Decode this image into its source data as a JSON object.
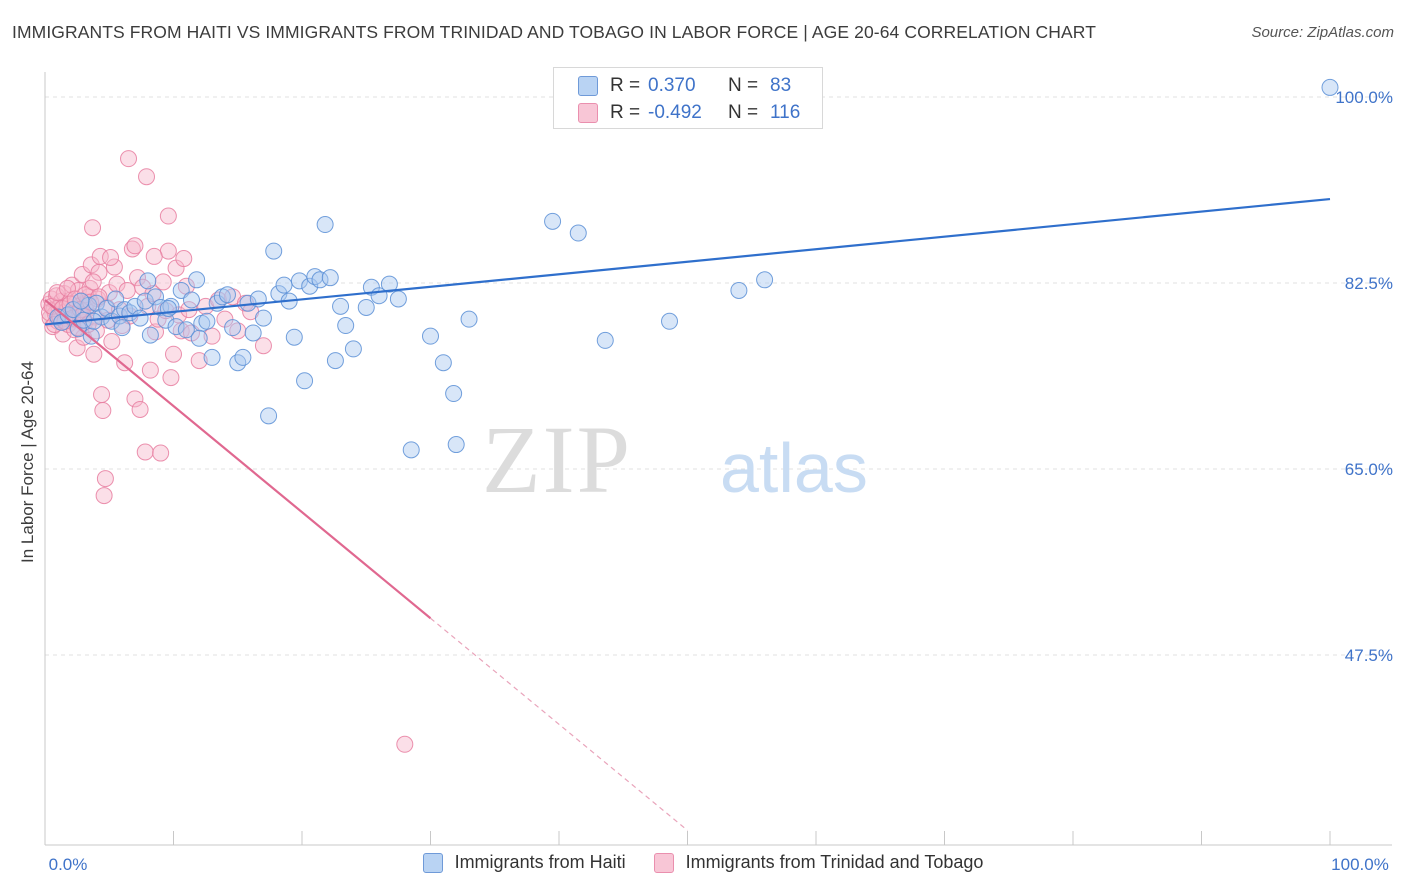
{
  "chart_data": {
    "type": "scatter",
    "title": "IMMIGRANTS FROM HAITI VS IMMIGRANTS FROM TRINIDAD AND TOBAGO IN LABOR FORCE | AGE 20-64 CORRELATION CHART",
    "source": "Source: ZipAtlas.com",
    "ylabel": "In Labor Force | Age 20-64",
    "xlim": [
      0,
      100
    ],
    "ylim": [
      31,
      102
    ],
    "x_tick_labels": [
      "0.0%",
      "100.0%"
    ],
    "y_ticks": [
      {
        "value": 100.0,
        "label": "100.0%"
      },
      {
        "value": 82.5,
        "label": "82.5%"
      },
      {
        "value": 65.0,
        "label": "65.0%"
      },
      {
        "value": 47.5,
        "label": "47.5%"
      }
    ],
    "watermark": {
      "zip": "ZIP",
      "atlas": "atlas"
    },
    "colors": {
      "haiti_fill": "#a9c8f0",
      "haiti_edge": "#5b8fd6",
      "haiti_line": "#2f6fcc",
      "tt_fill": "#f6b8cc",
      "tt_edge": "#e87ea0",
      "tt_line": "#e06890",
      "tick_label": "#3f73c9",
      "grid": "#e2e2e2"
    },
    "series": [
      {
        "name": "Immigrants from Haiti",
        "r_label": "R =",
        "r_value": "0.370",
        "n_label": "N =",
        "n_value": "83",
        "trend": {
          "x": [
            0,
            100
          ],
          "y": [
            78.6,
            90.4
          ],
          "dashed_from": null
        },
        "points": [
          [
            1.0,
            79.3
          ],
          [
            1.3,
            78.8
          ],
          [
            1.8,
            79.5
          ],
          [
            2.2,
            80.0
          ],
          [
            2.6,
            78.2
          ],
          [
            3.0,
            79.0
          ],
          [
            3.4,
            80.4
          ],
          [
            3.6,
            77.5
          ],
          [
            4.0,
            80.6
          ],
          [
            4.4,
            79.3
          ],
          [
            4.8,
            80.1
          ],
          [
            5.2,
            78.9
          ],
          [
            5.5,
            81.0
          ],
          [
            5.8,
            79.4
          ],
          [
            6.2,
            80.0
          ],
          [
            6.6,
            79.7
          ],
          [
            7.0,
            80.3
          ],
          [
            7.4,
            79.2
          ],
          [
            7.8,
            80.8
          ],
          [
            8.2,
            77.6
          ],
          [
            8.6,
            81.2
          ],
          [
            9.0,
            80.2
          ],
          [
            9.4,
            79.0
          ],
          [
            9.8,
            80.3
          ],
          [
            10.2,
            78.4
          ],
          [
            10.6,
            81.8
          ],
          [
            11.0,
            78.1
          ],
          [
            11.4,
            80.9
          ],
          [
            11.8,
            82.8
          ],
          [
            12.2,
            78.7
          ],
          [
            12.6,
            78.9
          ],
          [
            13.0,
            75.5
          ],
          [
            13.4,
            80.6
          ],
          [
            13.8,
            81.2
          ],
          [
            14.2,
            81.4
          ],
          [
            14.6,
            78.3
          ],
          [
            15.0,
            75.0
          ],
          [
            15.4,
            75.5
          ],
          [
            15.8,
            80.6
          ],
          [
            16.2,
            77.8
          ],
          [
            16.6,
            81.0
          ],
          [
            17.0,
            79.2
          ],
          [
            17.4,
            70.0
          ],
          [
            17.8,
            85.5
          ],
          [
            18.2,
            81.5
          ],
          [
            18.6,
            82.3
          ],
          [
            19.0,
            80.8
          ],
          [
            19.4,
            77.4
          ],
          [
            19.8,
            82.7
          ],
          [
            20.2,
            73.3
          ],
          [
            20.6,
            82.2
          ],
          [
            21.0,
            83.1
          ],
          [
            21.4,
            82.8
          ],
          [
            21.8,
            88.0
          ],
          [
            22.2,
            83.0
          ],
          [
            22.6,
            75.2
          ],
          [
            23.0,
            80.3
          ],
          [
            23.4,
            78.5
          ],
          [
            24.0,
            76.3
          ],
          [
            25.0,
            80.2
          ],
          [
            25.4,
            82.1
          ],
          [
            26.0,
            81.3
          ],
          [
            26.8,
            82.4
          ],
          [
            28.5,
            66.8
          ],
          [
            30.0,
            77.5
          ],
          [
            31.0,
            75.0
          ],
          [
            31.8,
            72.1
          ],
          [
            32.0,
            67.3
          ],
          [
            33.0,
            79.1
          ],
          [
            39.5,
            88.3
          ],
          [
            41.5,
            87.2
          ],
          [
            54.0,
            81.8
          ],
          [
            56.0,
            82.8
          ],
          [
            27.5,
            81.0
          ],
          [
            12.0,
            77.3
          ],
          [
            8.0,
            82.7
          ],
          [
            6.0,
            78.3
          ],
          [
            3.8,
            78.9
          ],
          [
            2.8,
            80.8
          ],
          [
            9.6,
            80.1
          ],
          [
            100.0,
            100.9
          ],
          [
            48.6,
            78.9
          ],
          [
            43.6,
            77.1
          ]
        ]
      },
      {
        "name": "Immigrants from Trinidad and Tobago",
        "r_label": "R =",
        "r_value": "-0.492",
        "n_label": "N =",
        "n_value": "116",
        "trend": {
          "x": [
            0,
            50
          ],
          "y": [
            80.9,
            31.0
          ],
          "dashed_from": 30
        },
        "points": [
          [
            0.3,
            80.5
          ],
          [
            0.4,
            79.2
          ],
          [
            0.5,
            81.0
          ],
          [
            0.6,
            78.4
          ],
          [
            0.7,
            80.0
          ],
          [
            0.8,
            79.6
          ],
          [
            0.9,
            81.3
          ],
          [
            1.0,
            78.9
          ],
          [
            1.1,
            80.2
          ],
          [
            1.2,
            79.0
          ],
          [
            1.3,
            80.8
          ],
          [
            1.4,
            77.7
          ],
          [
            1.5,
            81.5
          ],
          [
            1.6,
            79.8
          ],
          [
            1.7,
            80.3
          ],
          [
            1.8,
            78.6
          ],
          [
            1.9,
            79.4
          ],
          [
            2.0,
            80.9
          ],
          [
            2.1,
            82.3
          ],
          [
            2.2,
            79.1
          ],
          [
            2.3,
            78.1
          ],
          [
            2.4,
            80.6
          ],
          [
            2.5,
            76.4
          ],
          [
            2.6,
            81.8
          ],
          [
            2.7,
            79.7
          ],
          [
            2.8,
            80.4
          ],
          [
            2.9,
            83.3
          ],
          [
            3.0,
            77.4
          ],
          [
            3.1,
            78.8
          ],
          [
            3.2,
            79.9
          ],
          [
            3.3,
            80.7
          ],
          [
            3.4,
            81.2
          ],
          [
            3.5,
            82.0
          ],
          [
            3.6,
            84.2
          ],
          [
            3.7,
            87.7
          ],
          [
            3.8,
            75.8
          ],
          [
            3.9,
            79.3
          ],
          [
            4.0,
            78.0
          ],
          [
            4.1,
            81.0
          ],
          [
            4.2,
            83.5
          ],
          [
            4.3,
            85.0
          ],
          [
            4.4,
            72.0
          ],
          [
            4.5,
            70.5
          ],
          [
            4.6,
            62.5
          ],
          [
            4.7,
            64.1
          ],
          [
            4.8,
            80.2
          ],
          [
            4.9,
            79.0
          ],
          [
            5.0,
            81.6
          ],
          [
            5.2,
            77.0
          ],
          [
            5.4,
            84.0
          ],
          [
            5.6,
            82.4
          ],
          [
            5.8,
            80.0
          ],
          [
            6.0,
            78.5
          ],
          [
            6.2,
            75.0
          ],
          [
            6.4,
            81.8
          ],
          [
            6.6,
            79.4
          ],
          [
            6.8,
            85.7
          ],
          [
            7.0,
            71.6
          ],
          [
            7.2,
            83.0
          ],
          [
            7.4,
            70.6
          ],
          [
            7.6,
            82.1
          ],
          [
            7.8,
            66.6
          ],
          [
            8.0,
            80.3
          ],
          [
            8.2,
            74.3
          ],
          [
            8.4,
            81.5
          ],
          [
            8.6,
            77.9
          ],
          [
            8.8,
            79.1
          ],
          [
            9.0,
            66.5
          ],
          [
            9.2,
            82.6
          ],
          [
            9.4,
            79.9
          ],
          [
            9.6,
            85.5
          ],
          [
            9.8,
            73.6
          ],
          [
            10.0,
            75.8
          ],
          [
            10.2,
            83.9
          ],
          [
            10.4,
            79.5
          ],
          [
            10.6,
            78.0
          ],
          [
            10.8,
            84.8
          ],
          [
            11.0,
            82.2
          ],
          [
            11.2,
            80.0
          ],
          [
            11.4,
            77.8
          ],
          [
            12.0,
            75.2
          ],
          [
            12.5,
            80.3
          ],
          [
            13.0,
            77.5
          ],
          [
            13.5,
            80.9
          ],
          [
            14.0,
            79.1
          ],
          [
            14.6,
            81.2
          ],
          [
            15.0,
            78.0
          ],
          [
            15.6,
            80.6
          ],
          [
            16.0,
            79.8
          ],
          [
            17.0,
            76.6
          ],
          [
            0.35,
            79.7
          ],
          [
            0.55,
            80.3
          ],
          [
            0.75,
            78.6
          ],
          [
            0.95,
            81.6
          ],
          [
            1.15,
            79.3
          ],
          [
            1.35,
            80.1
          ],
          [
            1.55,
            78.9
          ],
          [
            1.75,
            82.0
          ],
          [
            1.95,
            80.5
          ],
          [
            2.15,
            79.2
          ],
          [
            2.35,
            81.0
          ],
          [
            2.55,
            78.3
          ],
          [
            2.75,
            80.0
          ],
          [
            2.95,
            79.5
          ],
          [
            3.15,
            81.4
          ],
          [
            3.35,
            78.6
          ],
          [
            3.55,
            80.7
          ],
          [
            3.75,
            82.6
          ],
          [
            6.5,
            94.2
          ],
          [
            7.9,
            92.5
          ],
          [
            9.6,
            88.8
          ],
          [
            7.0,
            86.0
          ],
          [
            4.2,
            81.2
          ],
          [
            5.1,
            84.9
          ],
          [
            28.0,
            39.1
          ],
          [
            8.5,
            85.0
          ]
        ]
      }
    ]
  }
}
